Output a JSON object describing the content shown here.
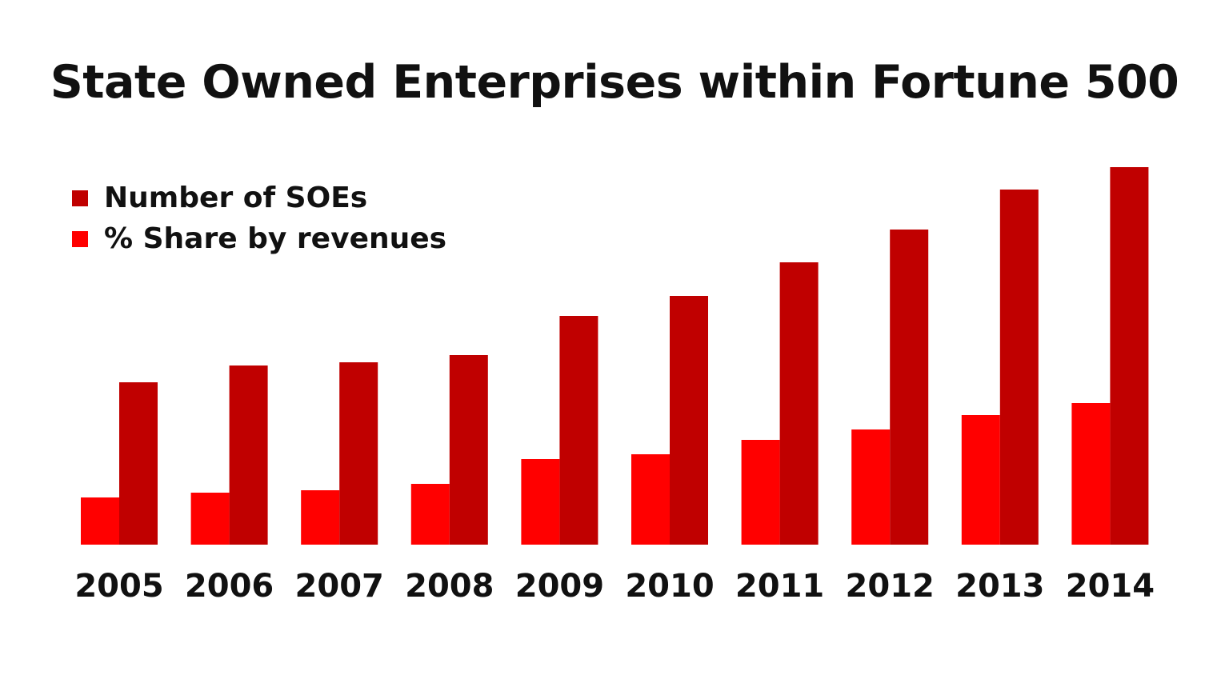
{
  "chart_data": {
    "type": "bar",
    "title": "State Owned Enterprises within Fortune 500",
    "xlabel": "",
    "ylabel": "",
    "categories": [
      "2005",
      "2006",
      "2007",
      "2008",
      "2009",
      "2010",
      "2011",
      "2012",
      "2013",
      "2014"
    ],
    "series": [
      {
        "name": "% Share by revenues",
        "color": "#ff0000",
        "values": [
          59,
          65,
          68,
          76,
          107,
          113,
          131,
          144,
          162,
          177
        ]
      },
      {
        "name": "Number of SOEs",
        "color": "#c00000",
        "values": [
          203,
          224,
          228,
          237,
          286,
          311,
          353,
          394,
          444,
          472
        ]
      }
    ],
    "ylim": [
      0,
      500
    ],
    "grid": false,
    "y_axis_visible": false,
    "legend_position": "top-left"
  }
}
